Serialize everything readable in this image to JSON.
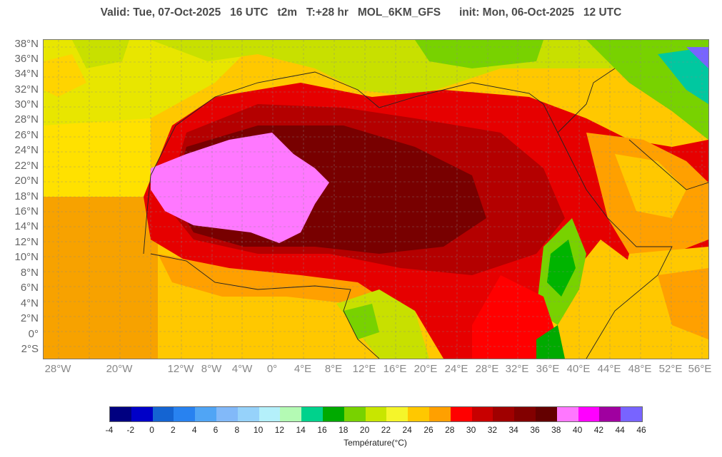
{
  "header": {
    "title": "Valid: Tue, 07-Oct-2025   16 UTC   t2m   T:+28 hr   MOL_6KM_GFS      init: Mon, 06-Oct-2025   12 UTC"
  },
  "map": {
    "lat_labels": [
      "38°N",
      "36°N",
      "34°N",
      "32°N",
      "30°N",
      "28°N",
      "26°N",
      "24°N",
      "22°N",
      "20°N",
      "18°N",
      "16°N",
      "14°N",
      "12°N",
      "10°N",
      "8°N",
      "6°N",
      "4°N",
      "2°N",
      "0°",
      "2°S"
    ],
    "lon_labels": [
      "28°W",
      "20°W",
      "12°W",
      "8°W",
      "4°W",
      "0°",
      "4°E",
      "8°E",
      "12°E",
      "16°E",
      "20°E",
      "24°E",
      "28°E",
      "32°E",
      "36°E",
      "40°E",
      "44°E",
      "48°E",
      "52°E",
      "56°E"
    ],
    "colors": {
      "ocean_warm": "#f7a200",
      "ocean_mid": "#ffc800",
      "ocean_cool": "#ffe400",
      "land_yellow": "#c8e000",
      "hot": "#e60000",
      "very_hot": "#b40000",
      "extreme": "#780000",
      "pink": "#ff78ff",
      "green": "#00b400",
      "teal": "#00c8a0"
    }
  },
  "colorbar": {
    "title": "Température(°C)",
    "labels": [
      "-4",
      "-2",
      "0",
      "2",
      "4",
      "6",
      "8",
      "10",
      "12",
      "14",
      "16",
      "18",
      "20",
      "22",
      "24",
      "26",
      "28",
      "30",
      "32",
      "34",
      "36",
      "38",
      "40",
      "42",
      "44",
      "46"
    ],
    "colors": [
      "#000080",
      "#0000c8",
      "#1464d2",
      "#2882f0",
      "#50a5f5",
      "#82b9f9",
      "#96d2fa",
      "#b4f0fa",
      "#b4fab4",
      "#00d28c",
      "#00aa00",
      "#78d200",
      "#c8e600",
      "#f5f52a",
      "#ffc800",
      "#ffa000",
      "#ff0000",
      "#c80000",
      "#a00000",
      "#820000",
      "#640000",
      "#ff78ff",
      "#ff00ff",
      "#a000a0",
      "#7864ff"
    ]
  }
}
